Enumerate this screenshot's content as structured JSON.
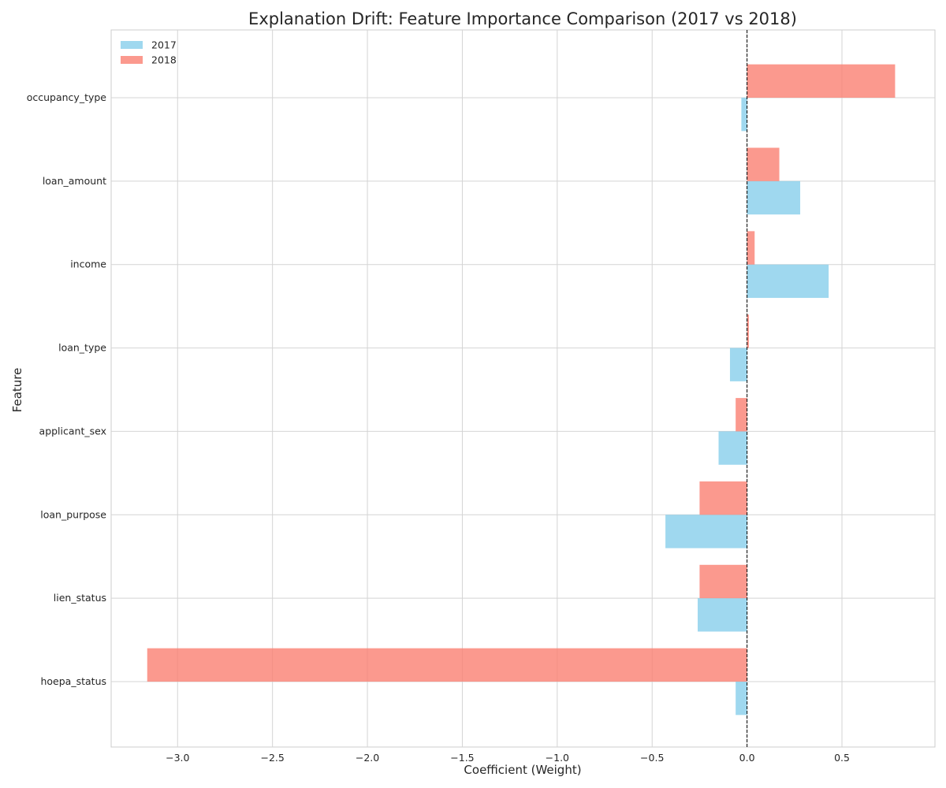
{
  "chart_data": {
    "type": "bar",
    "orientation": "horizontal",
    "title": "Explanation Drift: Feature Importance Comparison (2017 vs 2018)",
    "xlabel": "Coefficient (Weight)",
    "ylabel": "Feature",
    "categories": [
      "occupancy_type",
      "loan_amount",
      "income",
      "loan_type",
      "applicant_sex",
      "loan_purpose",
      "lien_status",
      "hoepa_status"
    ],
    "series": [
      {
        "name": "2017",
        "color": "#87ceeb",
        "values": [
          -0.03,
          0.28,
          0.43,
          -0.09,
          -0.15,
          -0.43,
          -0.26,
          -0.06
        ]
      },
      {
        "name": "2018",
        "color": "#fa8072",
        "values": [
          0.78,
          0.17,
          0.04,
          0.01,
          -0.06,
          -0.25,
          -0.25,
          -3.16
        ]
      }
    ],
    "xlim": [
      -3.35,
      0.99
    ],
    "xticks": [
      -3.0,
      -2.5,
      -2.0,
      -1.5,
      -1.0,
      -0.5,
      0.0,
      0.5
    ],
    "xtick_labels": [
      "−3.0",
      "−2.5",
      "−2.0",
      "−1.5",
      "−1.0",
      "−0.5",
      "0.0",
      "0.5"
    ],
    "reference_line": {
      "x": 0.0,
      "style": "dashed",
      "color": "#000000"
    },
    "grid": true,
    "legend": {
      "position": "top-left",
      "entries": [
        "2017",
        "2018"
      ]
    }
  }
}
